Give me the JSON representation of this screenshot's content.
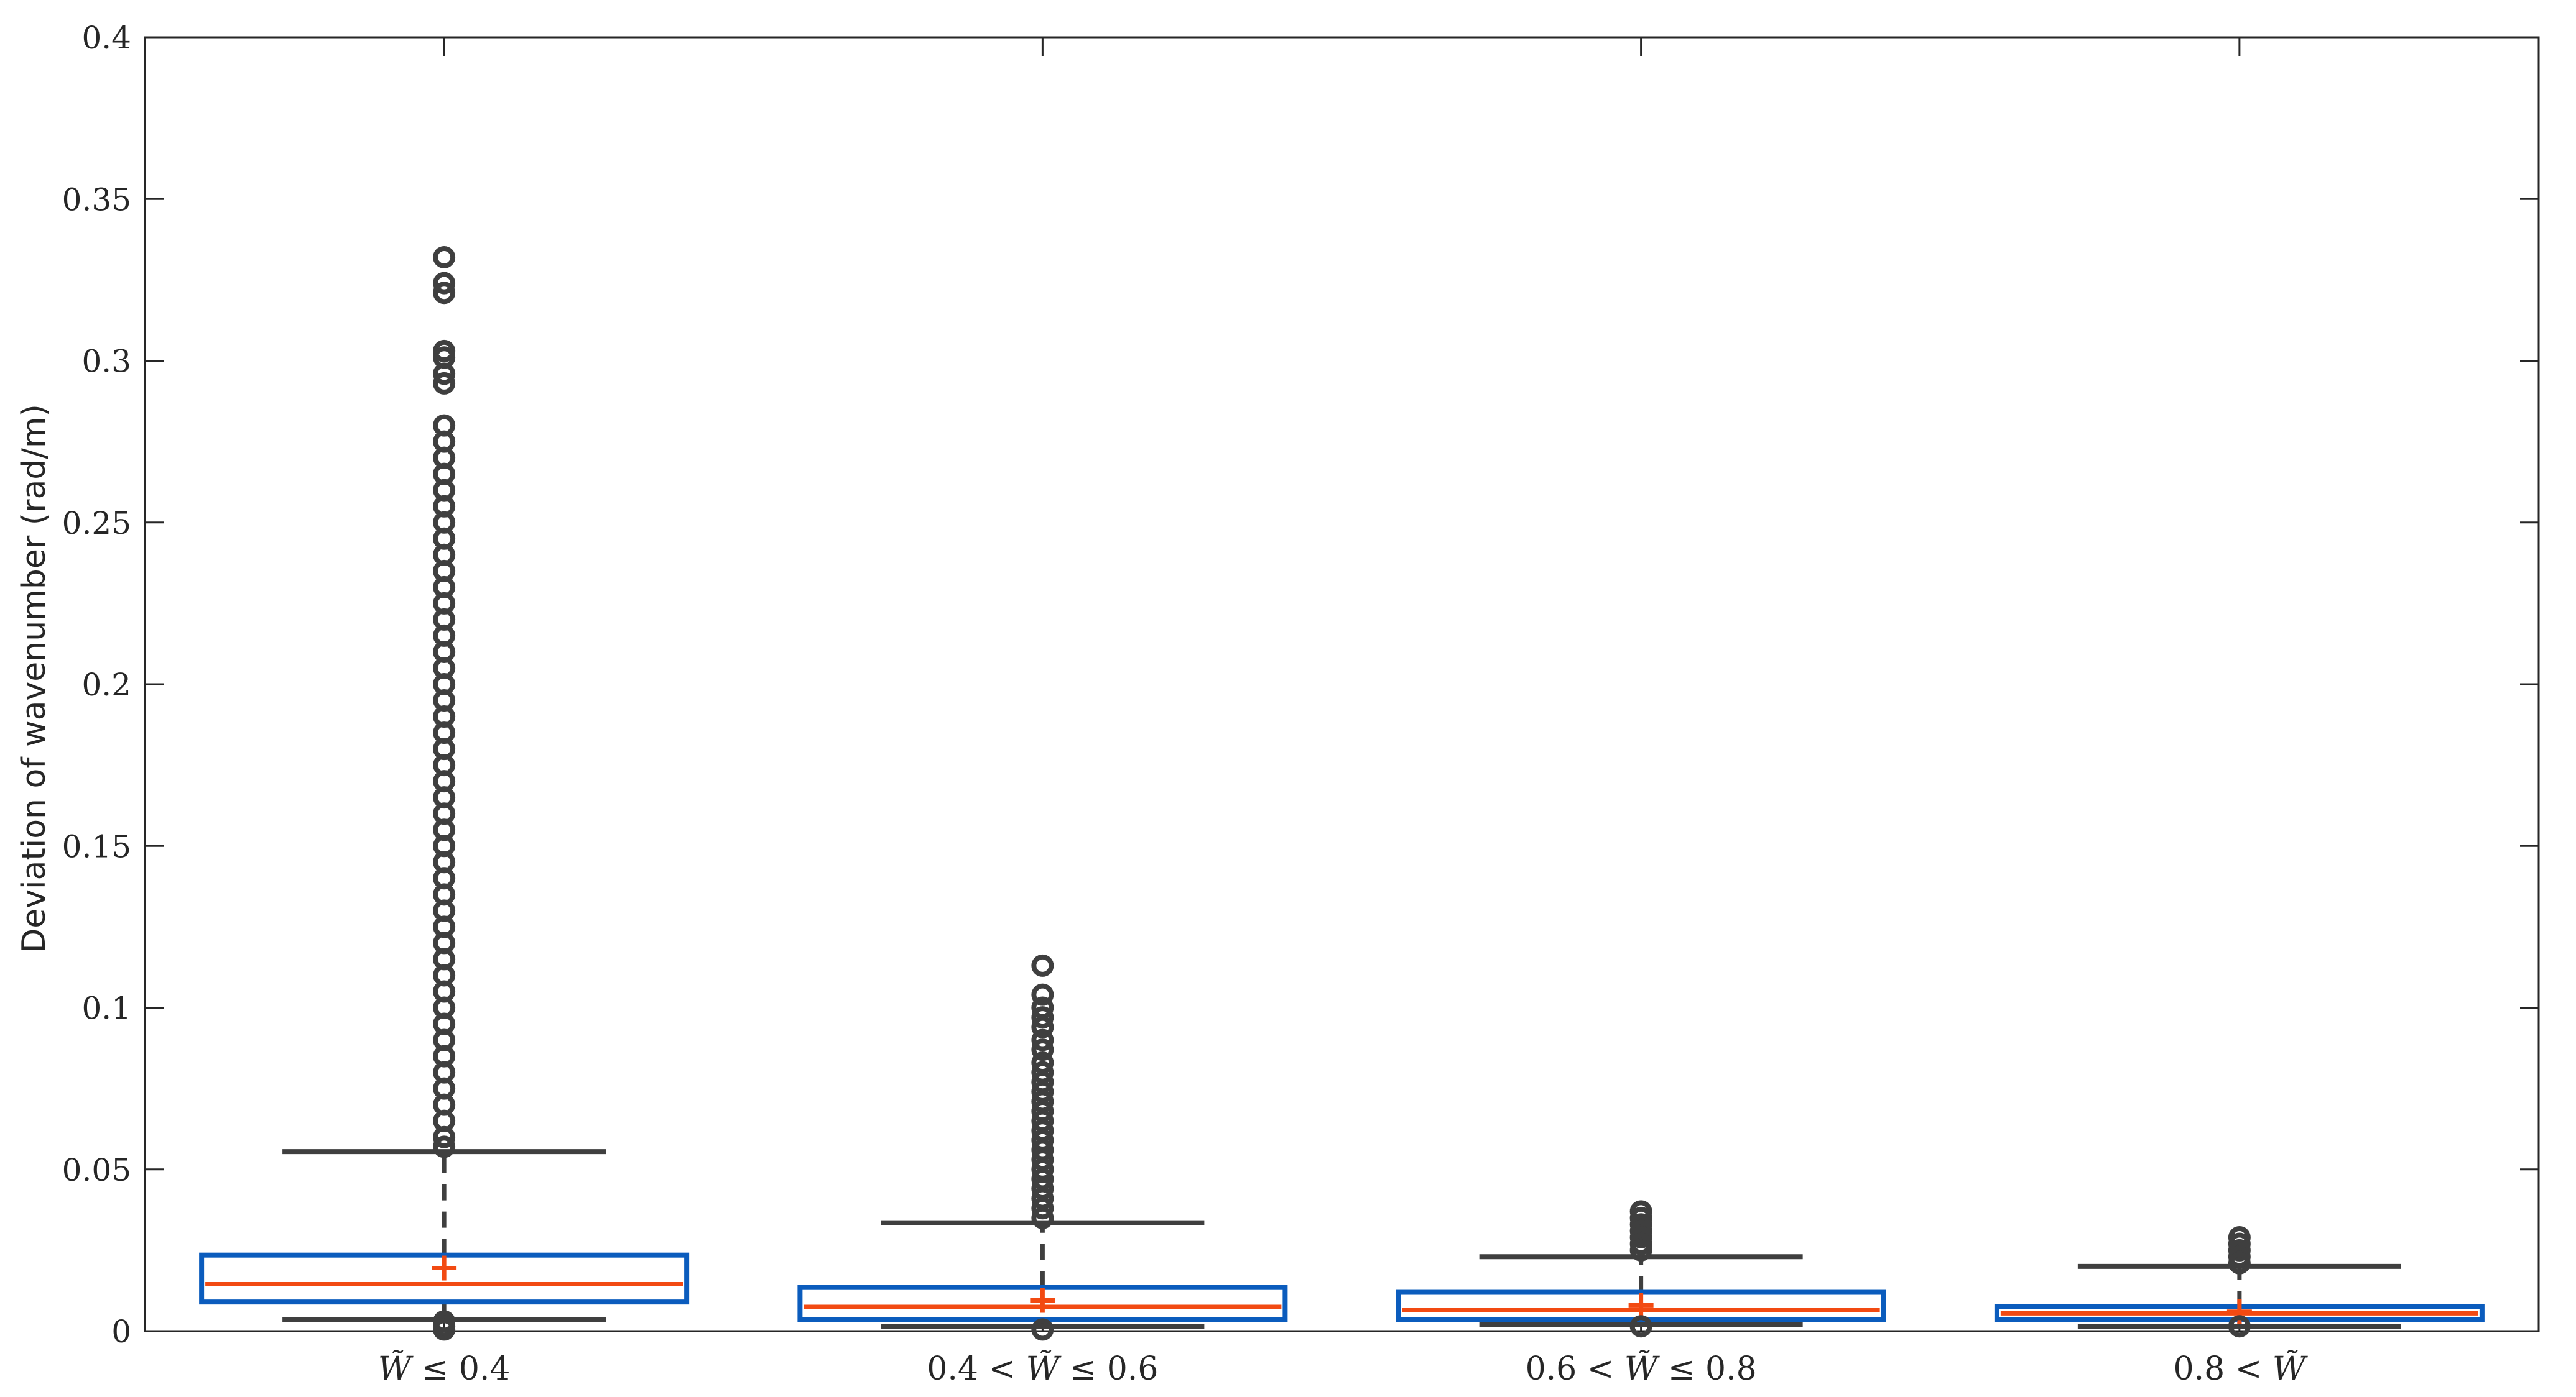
{
  "chart_data": {
    "type": "box",
    "title": "",
    "xlabel": "",
    "ylabel": "Deviation of wavenumber (rad/m)",
    "ylim": [
      0,
      0.4
    ],
    "yticks": [
      0,
      0.05,
      0.1,
      0.15,
      0.2,
      0.25,
      0.3,
      0.35,
      0.4
    ],
    "ytick_labels": [
      "0",
      "0.05",
      "0.1",
      "0.15",
      "0.2",
      "0.25",
      "0.3",
      "0.35",
      "0.4"
    ],
    "grid": false,
    "categories": [
      {
        "pre": "",
        "sym": "W",
        "post": " ≤ 0.4"
      },
      {
        "pre": "0.4 < ",
        "sym": "W",
        "post": " ≤ 0.6"
      },
      {
        "pre": "0.6 < ",
        "sym": "W",
        "post": " ≤ 0.8"
      },
      {
        "pre": "0.8 < ",
        "sym": "W",
        "post": ""
      }
    ],
    "boxes": [
      {
        "q1": 0.009,
        "median": 0.0145,
        "q3": 0.0235,
        "mean": 0.0195,
        "whisker_low": 0.0035,
        "whisker_high": 0.0555,
        "outliers": [
          0.332,
          0.324,
          0.321,
          0.303,
          0.301,
          0.296,
          0.293,
          0.28,
          0.275,
          0.27,
          0.265,
          0.26,
          0.255,
          0.25,
          0.245,
          0.24,
          0.235,
          0.23,
          0.225,
          0.22,
          0.215,
          0.21,
          0.205,
          0.2,
          0.195,
          0.19,
          0.185,
          0.18,
          0.175,
          0.17,
          0.165,
          0.16,
          0.155,
          0.15,
          0.145,
          0.14,
          0.135,
          0.13,
          0.125,
          0.12,
          0.115,
          0.11,
          0.105,
          0.1,
          0.095,
          0.09,
          0.085,
          0.08,
          0.075,
          0.07,
          0.065,
          0.06,
          0.057,
          0.003,
          0.0015,
          0.0005
        ]
      },
      {
        "q1": 0.0035,
        "median": 0.0075,
        "q3": 0.0135,
        "mean": 0.0095,
        "whisker_low": 0.0015,
        "whisker_high": 0.0335,
        "outliers": [
          0.113,
          0.104,
          0.1,
          0.097,
          0.094,
          0.09,
          0.087,
          0.083,
          0.08,
          0.077,
          0.074,
          0.071,
          0.068,
          0.065,
          0.062,
          0.059,
          0.056,
          0.053,
          0.05,
          0.047,
          0.044,
          0.041,
          0.038,
          0.035,
          0.0005
        ]
      },
      {
        "q1": 0.0035,
        "median": 0.0065,
        "q3": 0.012,
        "mean": 0.008,
        "whisker_low": 0.002,
        "whisker_high": 0.023,
        "outliers": [
          0.037,
          0.035,
          0.033,
          0.031,
          0.029,
          0.027,
          0.025,
          0.0015
        ]
      },
      {
        "q1": 0.0035,
        "median": 0.0055,
        "q3": 0.0075,
        "mean": 0.006,
        "whisker_low": 0.0015,
        "whisker_high": 0.02,
        "outliers": [
          0.029,
          0.027,
          0.025,
          0.023,
          0.021,
          0.0015
        ]
      }
    ],
    "colors": {
      "box": "#0b5cbd",
      "median": "#f24a12",
      "mean": "#f24a12",
      "whisker": "#3f3f3f",
      "outlier": "#3f3f3f",
      "axis": "#262626"
    }
  }
}
